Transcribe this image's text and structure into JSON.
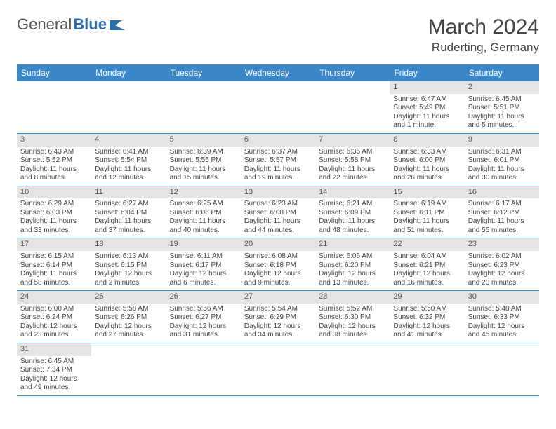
{
  "logo": {
    "part1": "General",
    "part2": "Blue"
  },
  "title": "March 2024",
  "location": "Ruderting, Germany",
  "header_bg": "#3b87c8",
  "daynum_bg": "#e4e4e4",
  "border_color": "#3b87c8",
  "day_headers": [
    "Sunday",
    "Monday",
    "Tuesday",
    "Wednesday",
    "Thursday",
    "Friday",
    "Saturday"
  ],
  "weeks": [
    [
      null,
      null,
      null,
      null,
      null,
      {
        "n": "1",
        "sr": "Sunrise: 6:47 AM",
        "ss": "Sunset: 5:49 PM",
        "d1": "Daylight: 11 hours",
        "d2": "and 1 minute."
      },
      {
        "n": "2",
        "sr": "Sunrise: 6:45 AM",
        "ss": "Sunset: 5:51 PM",
        "d1": "Daylight: 11 hours",
        "d2": "and 5 minutes."
      }
    ],
    [
      {
        "n": "3",
        "sr": "Sunrise: 6:43 AM",
        "ss": "Sunset: 5:52 PM",
        "d1": "Daylight: 11 hours",
        "d2": "and 8 minutes."
      },
      {
        "n": "4",
        "sr": "Sunrise: 6:41 AM",
        "ss": "Sunset: 5:54 PM",
        "d1": "Daylight: 11 hours",
        "d2": "and 12 minutes."
      },
      {
        "n": "5",
        "sr": "Sunrise: 6:39 AM",
        "ss": "Sunset: 5:55 PM",
        "d1": "Daylight: 11 hours",
        "d2": "and 15 minutes."
      },
      {
        "n": "6",
        "sr": "Sunrise: 6:37 AM",
        "ss": "Sunset: 5:57 PM",
        "d1": "Daylight: 11 hours",
        "d2": "and 19 minutes."
      },
      {
        "n": "7",
        "sr": "Sunrise: 6:35 AM",
        "ss": "Sunset: 5:58 PM",
        "d1": "Daylight: 11 hours",
        "d2": "and 22 minutes."
      },
      {
        "n": "8",
        "sr": "Sunrise: 6:33 AM",
        "ss": "Sunset: 6:00 PM",
        "d1": "Daylight: 11 hours",
        "d2": "and 26 minutes."
      },
      {
        "n": "9",
        "sr": "Sunrise: 6:31 AM",
        "ss": "Sunset: 6:01 PM",
        "d1": "Daylight: 11 hours",
        "d2": "and 30 minutes."
      }
    ],
    [
      {
        "n": "10",
        "sr": "Sunrise: 6:29 AM",
        "ss": "Sunset: 6:03 PM",
        "d1": "Daylight: 11 hours",
        "d2": "and 33 minutes."
      },
      {
        "n": "11",
        "sr": "Sunrise: 6:27 AM",
        "ss": "Sunset: 6:04 PM",
        "d1": "Daylight: 11 hours",
        "d2": "and 37 minutes."
      },
      {
        "n": "12",
        "sr": "Sunrise: 6:25 AM",
        "ss": "Sunset: 6:06 PM",
        "d1": "Daylight: 11 hours",
        "d2": "and 40 minutes."
      },
      {
        "n": "13",
        "sr": "Sunrise: 6:23 AM",
        "ss": "Sunset: 6:08 PM",
        "d1": "Daylight: 11 hours",
        "d2": "and 44 minutes."
      },
      {
        "n": "14",
        "sr": "Sunrise: 6:21 AM",
        "ss": "Sunset: 6:09 PM",
        "d1": "Daylight: 11 hours",
        "d2": "and 48 minutes."
      },
      {
        "n": "15",
        "sr": "Sunrise: 6:19 AM",
        "ss": "Sunset: 6:11 PM",
        "d1": "Daylight: 11 hours",
        "d2": "and 51 minutes."
      },
      {
        "n": "16",
        "sr": "Sunrise: 6:17 AM",
        "ss": "Sunset: 6:12 PM",
        "d1": "Daylight: 11 hours",
        "d2": "and 55 minutes."
      }
    ],
    [
      {
        "n": "17",
        "sr": "Sunrise: 6:15 AM",
        "ss": "Sunset: 6:14 PM",
        "d1": "Daylight: 11 hours",
        "d2": "and 58 minutes."
      },
      {
        "n": "18",
        "sr": "Sunrise: 6:13 AM",
        "ss": "Sunset: 6:15 PM",
        "d1": "Daylight: 12 hours",
        "d2": "and 2 minutes."
      },
      {
        "n": "19",
        "sr": "Sunrise: 6:11 AM",
        "ss": "Sunset: 6:17 PM",
        "d1": "Daylight: 12 hours",
        "d2": "and 6 minutes."
      },
      {
        "n": "20",
        "sr": "Sunrise: 6:08 AM",
        "ss": "Sunset: 6:18 PM",
        "d1": "Daylight: 12 hours",
        "d2": "and 9 minutes."
      },
      {
        "n": "21",
        "sr": "Sunrise: 6:06 AM",
        "ss": "Sunset: 6:20 PM",
        "d1": "Daylight: 12 hours",
        "d2": "and 13 minutes."
      },
      {
        "n": "22",
        "sr": "Sunrise: 6:04 AM",
        "ss": "Sunset: 6:21 PM",
        "d1": "Daylight: 12 hours",
        "d2": "and 16 minutes."
      },
      {
        "n": "23",
        "sr": "Sunrise: 6:02 AM",
        "ss": "Sunset: 6:23 PM",
        "d1": "Daylight: 12 hours",
        "d2": "and 20 minutes."
      }
    ],
    [
      {
        "n": "24",
        "sr": "Sunrise: 6:00 AM",
        "ss": "Sunset: 6:24 PM",
        "d1": "Daylight: 12 hours",
        "d2": "and 23 minutes."
      },
      {
        "n": "25",
        "sr": "Sunrise: 5:58 AM",
        "ss": "Sunset: 6:26 PM",
        "d1": "Daylight: 12 hours",
        "d2": "and 27 minutes."
      },
      {
        "n": "26",
        "sr": "Sunrise: 5:56 AM",
        "ss": "Sunset: 6:27 PM",
        "d1": "Daylight: 12 hours",
        "d2": "and 31 minutes."
      },
      {
        "n": "27",
        "sr": "Sunrise: 5:54 AM",
        "ss": "Sunset: 6:29 PM",
        "d1": "Daylight: 12 hours",
        "d2": "and 34 minutes."
      },
      {
        "n": "28",
        "sr": "Sunrise: 5:52 AM",
        "ss": "Sunset: 6:30 PM",
        "d1": "Daylight: 12 hours",
        "d2": "and 38 minutes."
      },
      {
        "n": "29",
        "sr": "Sunrise: 5:50 AM",
        "ss": "Sunset: 6:32 PM",
        "d1": "Daylight: 12 hours",
        "d2": "and 41 minutes."
      },
      {
        "n": "30",
        "sr": "Sunrise: 5:48 AM",
        "ss": "Sunset: 6:33 PM",
        "d1": "Daylight: 12 hours",
        "d2": "and 45 minutes."
      }
    ],
    [
      {
        "n": "31",
        "sr": "Sunrise: 6:45 AM",
        "ss": "Sunset: 7:34 PM",
        "d1": "Daylight: 12 hours",
        "d2": "and 49 minutes."
      },
      null,
      null,
      null,
      null,
      null,
      null
    ]
  ]
}
